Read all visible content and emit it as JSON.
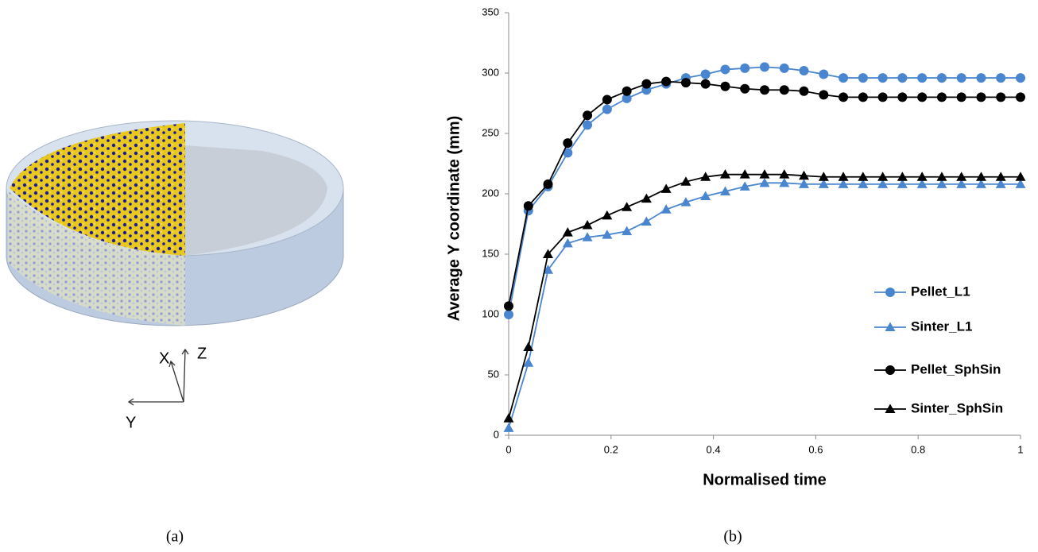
{
  "chart_data": {
    "type": "line",
    "xlabel": "Normalised time",
    "ylabel": "Average Y coordinate (mm)",
    "x": [
      0,
      0.0385,
      0.0769,
      0.1154,
      0.1538,
      0.1923,
      0.2308,
      0.2692,
      0.3077,
      0.3462,
      0.3846,
      0.4231,
      0.4615,
      0.5,
      0.5385,
      0.5769,
      0.6154,
      0.6538,
      0.6923,
      0.7308,
      0.7692,
      0.8077,
      0.8462,
      0.8846,
      0.9231,
      0.9615,
      1
    ],
    "series": [
      {
        "name": "Pellet_L1",
        "color": "#4a86d0",
        "marker": "circle",
        "values": [
          100,
          186,
          206,
          234,
          257,
          270,
          279,
          286,
          291,
          296,
          299,
          303,
          304,
          305,
          304,
          302,
          299,
          296,
          296,
          296,
          296,
          296,
          296,
          296,
          296,
          296,
          296
        ]
      },
      {
        "name": "Sinter_L1",
        "color": "#4a86d0",
        "marker": "triangle",
        "values": [
          6,
          60,
          137,
          159,
          164,
          166,
          169,
          177,
          187,
          193,
          198,
          202,
          206,
          209,
          209,
          208,
          208,
          208,
          208,
          208,
          208,
          208,
          208,
          208,
          208,
          208,
          208
        ]
      },
      {
        "name": "Pellet_SphSin",
        "color": "#000000",
        "marker": "circle",
        "values": [
          107,
          190,
          208,
          242,
          265,
          278,
          285,
          291,
          293,
          292,
          291,
          289,
          287,
          286,
          286,
          285,
          282,
          280,
          280,
          280,
          280,
          280,
          280,
          280,
          280,
          280,
          280
        ]
      },
      {
        "name": "Sinter_SphSin",
        "color": "#000000",
        "marker": "triangle",
        "values": [
          14,
          73,
          150,
          168,
          174,
          182,
          189,
          196,
          204,
          210,
          214,
          216,
          216,
          216,
          216,
          215,
          214,
          214,
          214,
          214,
          214,
          214,
          214,
          214,
          214,
          214,
          214
        ]
      }
    ],
    "xlim": [
      0,
      1
    ],
    "xticks": [
      0,
      0.2,
      0.4,
      0.6,
      0.8,
      1
    ],
    "ylim": [
      0,
      350
    ],
    "yticks": [
      0,
      50,
      100,
      150,
      200,
      250,
      300,
      350
    ],
    "legend": "right",
    "grid": false
  },
  "figure": {
    "panel_a_label": "(a)",
    "panel_b_label": "(b)",
    "axis_x": "X",
    "axis_z": "Z",
    "axis_y": "Y"
  }
}
